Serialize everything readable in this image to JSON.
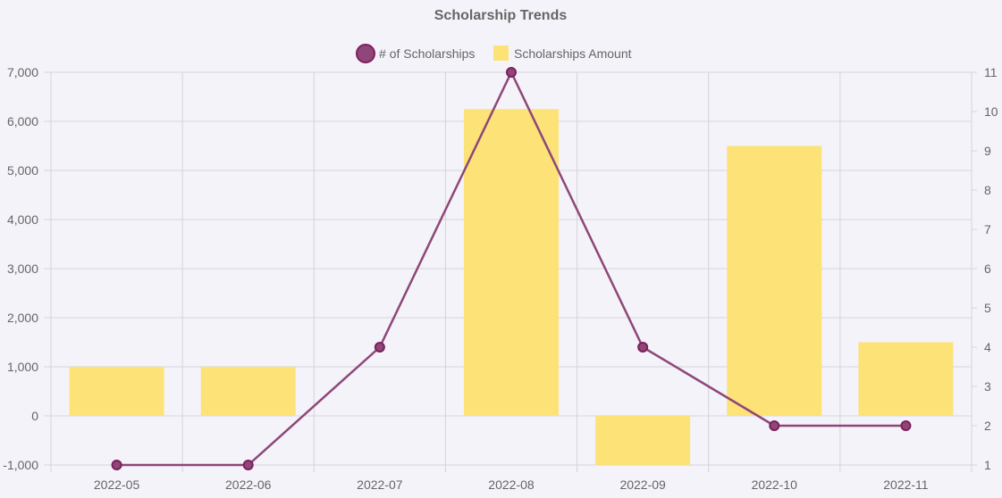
{
  "chart_data": {
    "type": "bar",
    "title": "Scholarship Trends",
    "categories": [
      "2022-05",
      "2022-06",
      "2022-07",
      "2022-08",
      "2022-09",
      "2022-10",
      "2022-11"
    ],
    "series": [
      {
        "name": "# of Scholarships",
        "type": "line",
        "axis": "right",
        "values": [
          1,
          1,
          4,
          11,
          4,
          2,
          2
        ],
        "color": "#7d1f5c"
      },
      {
        "name": "Scholarships Amount",
        "type": "bar",
        "axis": "left",
        "values": [
          1000,
          1000,
          0,
          6250,
          -1000,
          5500,
          1500
        ],
        "color": "#fce277"
      }
    ],
    "y_left": {
      "min": -1000,
      "max": 7000,
      "ticks": [
        -1000,
        0,
        1000,
        2000,
        3000,
        4000,
        5000,
        6000,
        7000
      ],
      "tick_labels": [
        "-1,000",
        "0",
        "1,000",
        "2,000",
        "3,000",
        "4,000",
        "5,000",
        "6,000",
        "7,000"
      ]
    },
    "y_right": {
      "min": 1,
      "max": 11,
      "ticks": [
        1,
        2,
        3,
        4,
        5,
        6,
        7,
        8,
        9,
        10,
        11
      ],
      "tick_labels": [
        "1",
        "2",
        "3",
        "4",
        "5",
        "6",
        "7",
        "8",
        "9",
        "10",
        "11"
      ]
    },
    "grid": true,
    "legend_position": "top"
  }
}
